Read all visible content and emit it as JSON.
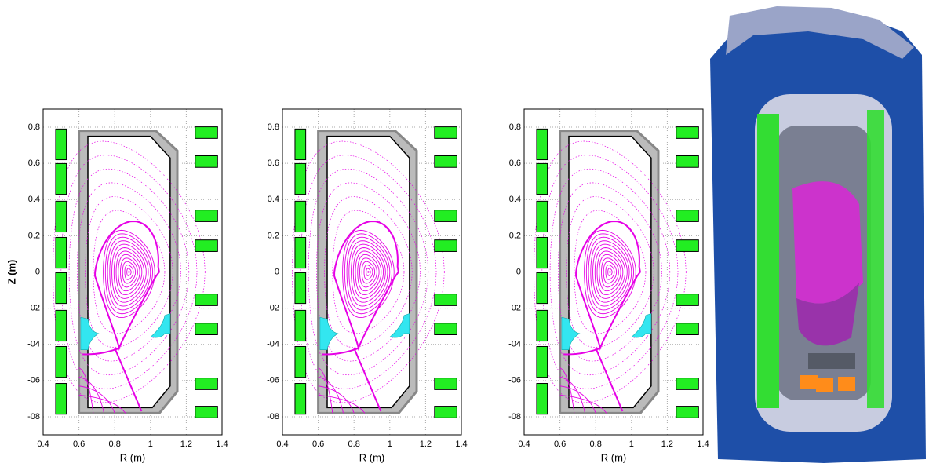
{
  "chart_data": [
    {
      "type": "equilibrium",
      "xlabel": "R (m)",
      "ylabel": "Z (m)",
      "xlim": [
        0.4,
        1.4
      ],
      "ylim": [
        -0.9,
        0.9
      ],
      "xticks": [
        0.4,
        0.6,
        0.8,
        1,
        1.2,
        1.4
      ],
      "yticks": [
        0.8,
        0.6,
        0.4,
        0.2,
        0,
        {
          "value": -0.2,
          "label": "-02"
        },
        {
          "value": -0.4,
          "label": "-04"
        },
        {
          "value": -0.6,
          "label": "-06"
        },
        {
          "value": -0.8,
          "label": "-08"
        }
      ],
      "grid": true,
      "color": "#e600e6"
    },
    {
      "type": "equilibrium",
      "xlabel": "R (m)",
      "xlim": [
        0.4,
        1.4
      ],
      "ylim": [
        -0.9,
        0.9
      ],
      "xticks": [
        0.4,
        0.6,
        0.8,
        1,
        1.2,
        1.4
      ],
      "yticks": [
        0.8,
        0.6,
        0.4,
        0.2,
        0,
        {
          "value": -0.2,
          "label": "-02"
        },
        {
          "value": -0.4,
          "label": "-04"
        },
        {
          "value": -0.6,
          "label": "-06"
        },
        {
          "value": -0.8,
          "label": "-08"
        }
      ],
      "grid": true,
      "color": "#e600e6"
    },
    {
      "type": "equilibrium",
      "xlabel": "R (m)",
      "xlim": [
        0.4,
        1.4
      ],
      "ylim": [
        -0.9,
        0.9
      ],
      "xticks": [
        0.4,
        0.6,
        0.8,
        1,
        1.2,
        1.4
      ],
      "yticks": [
        0.8,
        0.6,
        0.4,
        0.2,
        0,
        {
          "value": -0.2,
          "label": "-02"
        },
        {
          "value": -0.4,
          "label": "-04"
        },
        {
          "value": -0.6,
          "label": "-06"
        },
        {
          "value": -0.8,
          "label": "-08"
        }
      ],
      "grid": true,
      "color": "#e600e6"
    }
  ]
}
